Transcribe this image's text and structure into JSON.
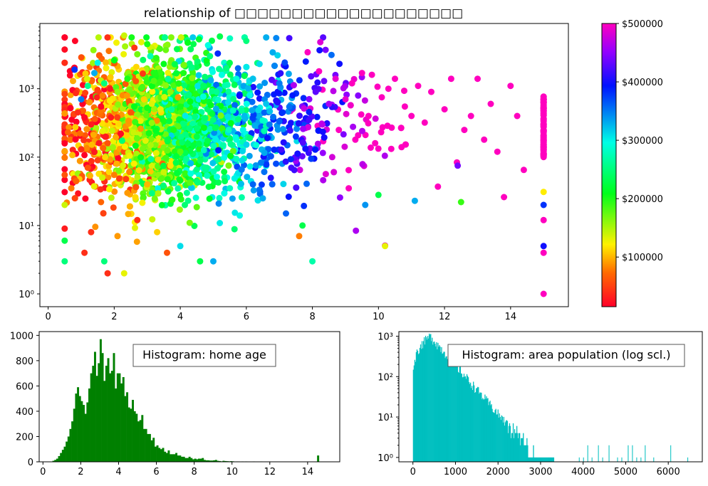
{
  "chart_data": [
    {
      "id": "scatter",
      "type": "scatter",
      "title": "relationship of □□□□□□□□□□□□□□□□□□□□",
      "xlabel": "",
      "ylabel": "",
      "xlim": [
        -0.25,
        15.75
      ],
      "ylim": [
        0.65,
        9000
      ],
      "yscale": "log",
      "x_ticks": [
        0,
        2,
        4,
        6,
        8,
        10,
        12,
        14
      ],
      "x_tick_labels": [
        "0",
        "2",
        "4",
        "6",
        "8",
        "10",
        "12",
        "14"
      ],
      "y_ticks": [
        1,
        10,
        100,
        1000
      ],
      "y_tick_labels": [
        "10⁰",
        "10¹",
        "10²",
        "10³"
      ],
      "grid": false,
      "colormap": "gist_rainbow",
      "points_note": "",
      "points": [
        [
          0.5,
          9,
          30000
        ],
        [
          0.5,
          3,
          250000
        ],
        [
          0.5,
          6,
          230000
        ],
        [
          0.5,
          20,
          140000
        ],
        [
          0.5,
          55,
          60000
        ],
        [
          0.6,
          230,
          70000
        ],
        [
          0.7,
          35,
          80000
        ],
        [
          0.8,
          1900,
          380000
        ],
        [
          0.9,
          450,
          40000
        ],
        [
          1.0,
          130,
          40000
        ],
        [
          1.0,
          700,
          350000
        ],
        [
          1.1,
          380,
          20000
        ],
        [
          1.1,
          4,
          40000
        ],
        [
          1.2,
          70,
          60000
        ],
        [
          1.2,
          1100,
          260000
        ],
        [
          1.3,
          8,
          40000
        ],
        [
          1.3,
          300,
          30000
        ],
        [
          1.4,
          1700,
          330000
        ],
        [
          1.5,
          2400,
          300000
        ],
        [
          1.5,
          90,
          50000
        ],
        [
          1.6,
          550,
          20000
        ],
        [
          1.6,
          22,
          70000
        ],
        [
          1.7,
          3,
          250000
        ],
        [
          1.7,
          1200,
          250000
        ],
        [
          1.8,
          2,
          40000
        ],
        [
          1.8,
          160,
          60000
        ],
        [
          1.9,
          380,
          30000
        ],
        [
          2.0,
          2600,
          210000
        ],
        [
          2.0,
          55,
          80000
        ],
        [
          2.1,
          7,
          90000
        ],
        [
          2.1,
          900,
          160000
        ],
        [
          2.2,
          220,
          20000
        ],
        [
          2.3,
          2,
          130000
        ],
        [
          2.3,
          6000,
          140000
        ],
        [
          2.4,
          30,
          90000
        ],
        [
          2.4,
          1400,
          200000
        ],
        [
          2.5,
          450,
          60000
        ],
        [
          2.6,
          80,
          120000
        ],
        [
          2.7,
          3200,
          170000
        ],
        [
          2.7,
          12,
          40000
        ],
        [
          2.8,
          260,
          90000
        ],
        [
          2.9,
          700,
          110000
        ],
        [
          3.0,
          4500,
          200000
        ],
        [
          3.0,
          40,
          100000
        ],
        [
          3.1,
          150,
          150000
        ],
        [
          3.2,
          1300,
          180000
        ],
        [
          3.3,
          8,
          110000
        ],
        [
          3.4,
          500,
          130000
        ],
        [
          3.5,
          2300,
          210000
        ],
        [
          3.5,
          60,
          140000
        ],
        [
          3.6,
          4,
          60000
        ],
        [
          3.7,
          900,
          160000
        ],
        [
          3.8,
          250,
          200000
        ],
        [
          3.9,
          3800,
          230000
        ],
        [
          4.0,
          5,
          310000
        ],
        [
          4.0,
          120,
          180000
        ],
        [
          4.1,
          1700,
          200000
        ],
        [
          4.2,
          30,
          260000
        ],
        [
          4.3,
          650,
          210000
        ],
        [
          4.4,
          4500,
          230000
        ],
        [
          4.5,
          200,
          230000
        ],
        [
          4.6,
          3,
          230000
        ],
        [
          4.7,
          1100,
          240000
        ],
        [
          4.8,
          70,
          260000
        ],
        [
          4.9,
          3000,
          250000
        ],
        [
          5.0,
          350,
          250000
        ],
        [
          5.0,
          3,
          330000
        ],
        [
          5.1,
          900,
          260000
        ],
        [
          5.2,
          5800,
          230000
        ],
        [
          5.3,
          150,
          270000
        ],
        [
          5.4,
          2000,
          250000
        ],
        [
          5.5,
          35,
          280000
        ],
        [
          5.6,
          480,
          280000
        ],
        [
          5.7,
          1400,
          290000
        ],
        [
          5.8,
          14,
          300000
        ],
        [
          5.9,
          250,
          300000
        ],
        [
          6.0,
          5000,
          250000
        ],
        [
          6.1,
          800,
          300000
        ],
        [
          6.2,
          40,
          360000
        ],
        [
          6.3,
          150,
          290000
        ],
        [
          6.4,
          2300,
          310000
        ],
        [
          6.5,
          25,
          330000
        ],
        [
          6.6,
          600,
          320000
        ],
        [
          6.7,
          300,
          350000
        ],
        [
          6.8,
          3400,
          330000
        ],
        [
          6.9,
          80,
          370000
        ],
        [
          7.0,
          1200,
          350000
        ],
        [
          7.1,
          450,
          380000
        ],
        [
          7.2,
          15,
          360000
        ],
        [
          7.3,
          5500,
          420000
        ],
        [
          7.4,
          800,
          390000
        ],
        [
          7.5,
          200,
          380000
        ],
        [
          7.6,
          7,
          80000
        ],
        [
          7.7,
          10,
          230000
        ],
        [
          7.8,
          2500,
          390000
        ],
        [
          7.9,
          350,
          420000
        ],
        [
          8.0,
          3,
          270000
        ],
        [
          8.1,
          900,
          430000
        ],
        [
          8.2,
          1800,
          500000
        ],
        [
          8.3,
          300,
          470000
        ],
        [
          8.4,
          3700,
          440000
        ],
        [
          8.5,
          600,
          460000
        ],
        [
          8.6,
          100,
          480000
        ],
        [
          8.7,
          1400,
          490000
        ],
        [
          8.8,
          250,
          500000
        ],
        [
          9.0,
          700,
          490000
        ],
        [
          9.1,
          35,
          500000
        ],
        [
          9.2,
          1200,
          500000
        ],
        [
          9.3,
          180,
          500000
        ],
        [
          9.5,
          1700,
          500000
        ],
        [
          9.6,
          20,
          340000
        ],
        [
          9.7,
          400,
          500000
        ],
        [
          9.8,
          1600,
          500000
        ],
        [
          9.9,
          160,
          500000
        ],
        [
          10.0,
          28,
          230000
        ],
        [
          10.1,
          750,
          500000
        ],
        [
          10.2,
          5,
          130000
        ],
        [
          10.3,
          1000,
          500000
        ],
        [
          10.4,
          270,
          500000
        ],
        [
          10.5,
          1400,
          500000
        ],
        [
          10.7,
          140,
          500000
        ],
        [
          10.8,
          550,
          500000
        ],
        [
          11.0,
          400,
          500000
        ],
        [
          11.1,
          23,
          330000
        ],
        [
          11.2,
          1100,
          500000
        ],
        [
          11.4,
          320,
          500000
        ],
        [
          11.6,
          900,
          500000
        ],
        [
          11.8,
          37,
          500000
        ],
        [
          12.0,
          500,
          500000
        ],
        [
          12.2,
          1400,
          500000
        ],
        [
          12.4,
          75,
          440000
        ],
        [
          12.5,
          22,
          190000
        ],
        [
          12.6,
          250,
          500000
        ],
        [
          12.8,
          400,
          500000
        ],
        [
          13.0,
          1400,
          500000
        ],
        [
          13.2,
          180,
          500000
        ],
        [
          13.4,
          600,
          500000
        ],
        [
          13.6,
          120,
          500000
        ],
        [
          13.8,
          26,
          500000
        ],
        [
          14.0,
          1100,
          500000
        ],
        [
          14.2,
          400,
          500000
        ],
        [
          14.4,
          65,
          500000
        ],
        [
          15.0,
          1,
          500000
        ],
        [
          15.0,
          4,
          500000
        ],
        [
          15.0,
          5,
          400000
        ],
        [
          15.0,
          12,
          500000
        ],
        [
          15.0,
          20,
          380000
        ],
        [
          15.0,
          31,
          120000
        ],
        [
          15.0,
          130,
          500000
        ],
        [
          15.0,
          300,
          500000
        ],
        [
          15.0,
          700,
          500000
        ]
      ],
      "colorbar": {
        "ticks": [
          100000,
          200000,
          300000,
          400000,
          500000
        ],
        "tick_labels": [
          "$100000",
          "$200000",
          "$300000",
          "$400000",
          "$500000"
        ],
        "range": [
          14999,
          500001
        ]
      }
    },
    {
      "id": "hist_age",
      "type": "bar",
      "title": "Histogram: home age",
      "xlabel": "",
      "ylabel": "",
      "color": "#008000",
      "xlim": [
        -0.2,
        15.7
      ],
      "ylim": [
        0,
        1030
      ],
      "x_ticks": [
        0,
        2,
        4,
        6,
        8,
        10,
        12,
        14
      ],
      "x_tick_labels": [
        "0",
        "2",
        "4",
        "6",
        "8",
        "10",
        "12",
        "14"
      ],
      "y_ticks": [
        0,
        200,
        400,
        600,
        800,
        1000
      ],
      "y_tick_labels": [
        "0",
        "200",
        "400",
        "600",
        "800",
        "1000"
      ],
      "bins": {
        "start": 0.5,
        "width": 0.1
      },
      "values": [
        8,
        15,
        25,
        45,
        70,
        95,
        120,
        160,
        200,
        260,
        320,
        420,
        540,
        590,
        520,
        480,
        450,
        380,
        470,
        580,
        700,
        760,
        870,
        680,
        780,
        970,
        860,
        640,
        760,
        820,
        700,
        720,
        860,
        580,
        700,
        700,
        620,
        670,
        520,
        550,
        430,
        420,
        490,
        400,
        380,
        320,
        330,
        370,
        260,
        260,
        220,
        220,
        170,
        190,
        120,
        130,
        110,
        100,
        110,
        80,
        70,
        90,
        60,
        60,
        60,
        70,
        50,
        50,
        40,
        40,
        30,
        30,
        40,
        30,
        20,
        25,
        20,
        25,
        25,
        30,
        15,
        12,
        12,
        10,
        10,
        12,
        15,
        8,
        6,
        4,
        8,
        6,
        5,
        4,
        5,
        4,
        2,
        3,
        3,
        2,
        3,
        2,
        3,
        2,
        2,
        1,
        3,
        2,
        2,
        2,
        3,
        1,
        2,
        1,
        2,
        1,
        1,
        1,
        1,
        1,
        1,
        1,
        1,
        1,
        1,
        1,
        1,
        1,
        1,
        1,
        1,
        1,
        1,
        1,
        1,
        1,
        1,
        1,
        1,
        1,
        50
      ]
    },
    {
      "id": "hist_pop",
      "type": "bar",
      "title": "Histogram: area population (log scl.)",
      "xlabel": "",
      "ylabel": "",
      "color": "#00bfbf",
      "xlim": [
        -330,
        6800
      ],
      "ylim": [
        0.78,
        1300
      ],
      "yscale": "log",
      "x_ticks": [
        0,
        1000,
        2000,
        3000,
        4000,
        5000,
        6000
      ],
      "x_tick_labels": [
        "0",
        "1000",
        "2000",
        "3000",
        "4000",
        "5000",
        "6000"
      ],
      "y_ticks": [
        1,
        10,
        100,
        1000
      ],
      "y_tick_labels": [
        "10⁰",
        "10¹",
        "10²",
        "10³"
      ],
      "note": "",
      "outliers_x": [
        3900,
        4000,
        4100,
        4200,
        4350,
        4450,
        4600,
        4800,
        4900,
        5050,
        5150,
        5250,
        5350,
        5450,
        5650,
        6050,
        6450
      ]
    }
  ]
}
